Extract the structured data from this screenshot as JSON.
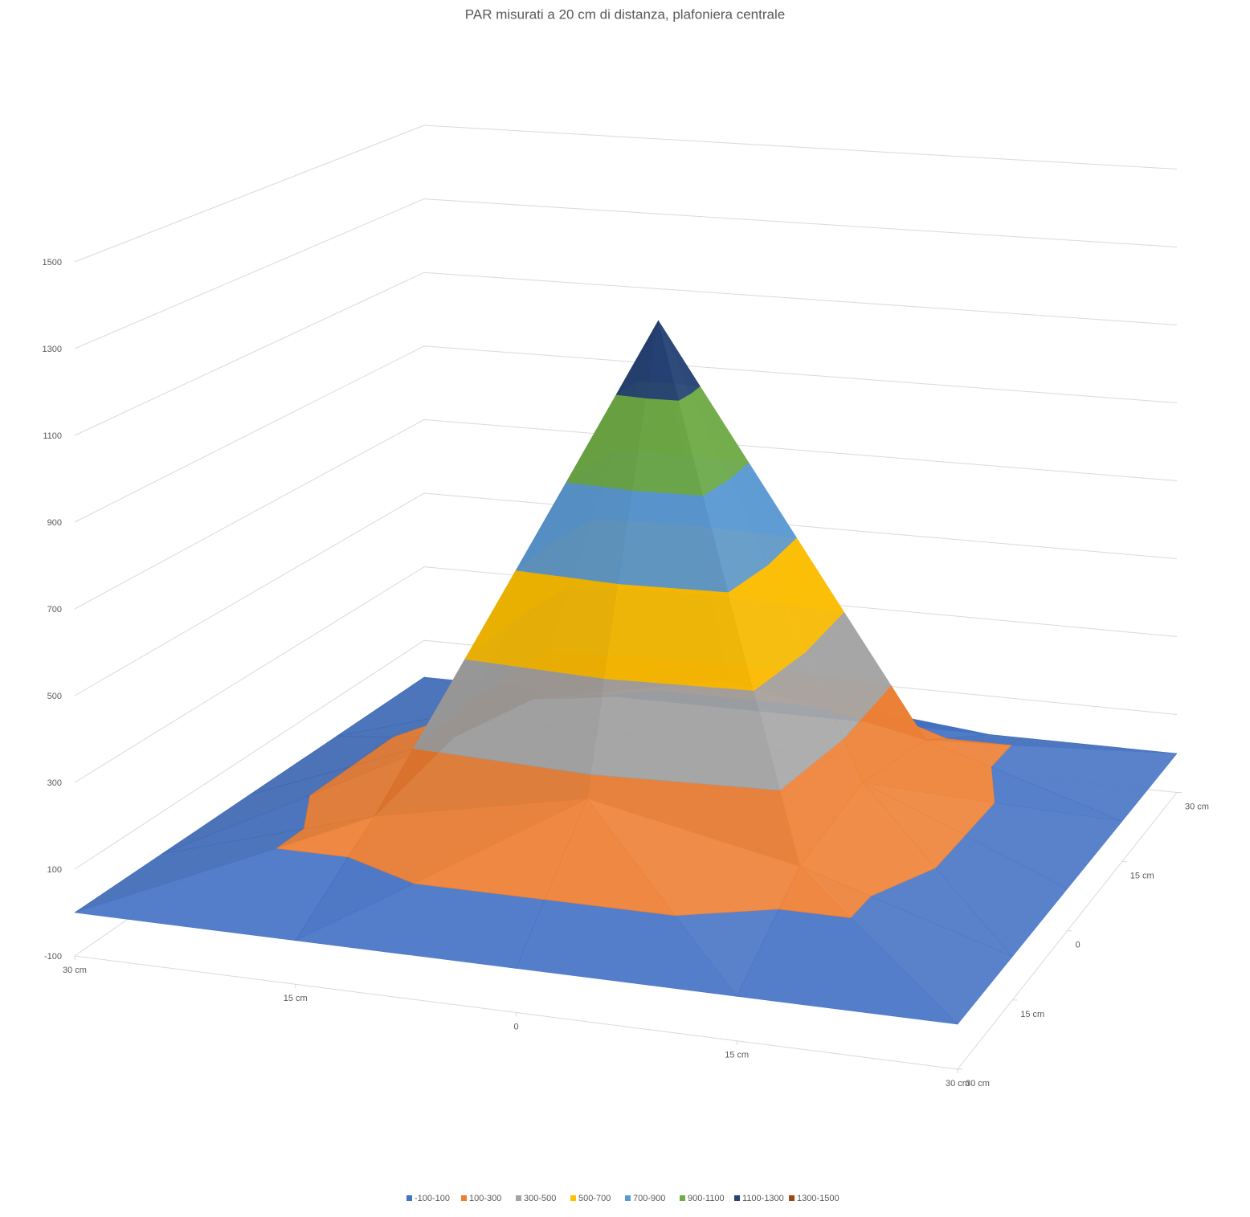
{
  "chart_data": {
    "type": "surface3d",
    "title": "PAR misurati a 20 cm di distanza, plafoniera centrale",
    "categories": [
      "30 cm",
      "15 cm",
      "0",
      "15 cm",
      "30 cm"
    ],
    "series": [
      {
        "name": "30 cm",
        "values": [
          0,
          0,
          0,
          0,
          0
        ]
      },
      {
        "name": "15 cm",
        "values": [
          0,
          150,
          250,
          150,
          0
        ]
      },
      {
        "name": "0",
        "values": [
          0,
          200,
          1270,
          200,
          0
        ]
      },
      {
        "name": "15 cm",
        "values": [
          0,
          150,
          250,
          150,
          0
        ]
      },
      {
        "name": "30 cm",
        "values": [
          0,
          0,
          0,
          0,
          0
        ]
      }
    ],
    "zlim": [
      -100,
      1500
    ],
    "zticks": [
      -100,
      100,
      300,
      500,
      700,
      900,
      1100,
      1300,
      1500
    ],
    "bands": [
      {
        "label": "-100-100",
        "from": -100,
        "to": 100,
        "color": "#4472c4"
      },
      {
        "label": "100-300",
        "from": 100,
        "to": 300,
        "color": "#ed7d31"
      },
      {
        "label": "300-500",
        "from": 300,
        "to": 500,
        "color": "#a5a5a5"
      },
      {
        "label": "500-700",
        "from": 500,
        "to": 700,
        "color": "#ffc000"
      },
      {
        "label": "700-900",
        "from": 700,
        "to": 900,
        "color": "#5b9bd5"
      },
      {
        "label": "900-1100",
        "from": 900,
        "to": 1100,
        "color": "#70ad47"
      },
      {
        "label": "1100-1300",
        "from": 1100,
        "to": 1300,
        "color": "#264478"
      },
      {
        "label": "1300-1500",
        "from": 1300,
        "to": 1500,
        "color": "#9e480e"
      }
    ],
    "grid": true
  }
}
